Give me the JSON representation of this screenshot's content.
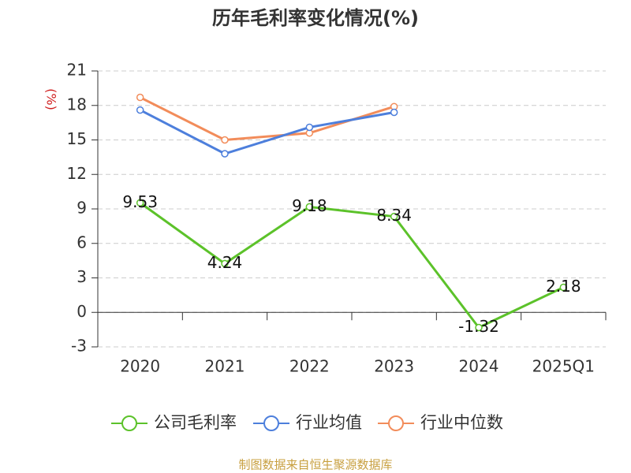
{
  "chart_data": {
    "type": "line",
    "title": "历年毛利率变化情况(%)",
    "y_label": "(%)",
    "categories": [
      "2020",
      "2021",
      "2022",
      "2023",
      "2024",
      "2025Q1"
    ],
    "series": [
      {
        "name": "公司毛利率",
        "color": "#5cc22a",
        "values": [
          9.53,
          4.24,
          9.18,
          8.34,
          -1.32,
          2.18
        ],
        "data_labels": true
      },
      {
        "name": "行业均值",
        "color": "#4d7fdc",
        "values": [
          17.6,
          13.8,
          16.1,
          17.4,
          null,
          null
        ]
      },
      {
        "name": "行业中位数",
        "color": "#f28c5a",
        "values": [
          18.7,
          15.0,
          15.6,
          17.9,
          null,
          null
        ]
      }
    ],
    "ylim": [
      -3,
      21
    ],
    "yticks": [
      -3,
      0,
      3,
      6,
      9,
      12,
      15,
      18,
      21
    ],
    "grid": true,
    "source": "制图数据来自恒生聚源数据库"
  }
}
